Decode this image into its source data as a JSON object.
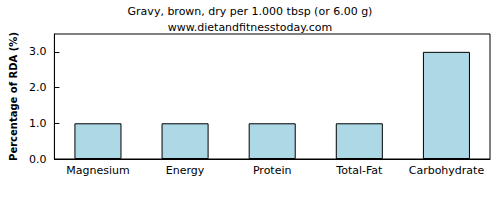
{
  "chart_data": {
    "type": "bar",
    "title": "Gravy, brown, dry per 1.000 tbsp (or 6.00 g)",
    "subtitle": "www.dietandfitnesstoday.com",
    "y_label": "Percentage of RDA (%)",
    "categories": [
      "Magnesium",
      "Energy",
      "Protein",
      "Total-Fat",
      "Carbohydrate"
    ],
    "values": [
      1,
      1,
      1,
      1,
      3
    ],
    "color": "#add8e6",
    "ylim": [
      0,
      3.5
    ],
    "yticks": [
      {
        "value": 0,
        "label": "0.0"
      },
      {
        "value": 1,
        "label": "1.0"
      },
      {
        "value": 2,
        "label": "2.0"
      },
      {
        "value": 3,
        "label": "3.0"
      }
    ],
    "grid": false
  }
}
